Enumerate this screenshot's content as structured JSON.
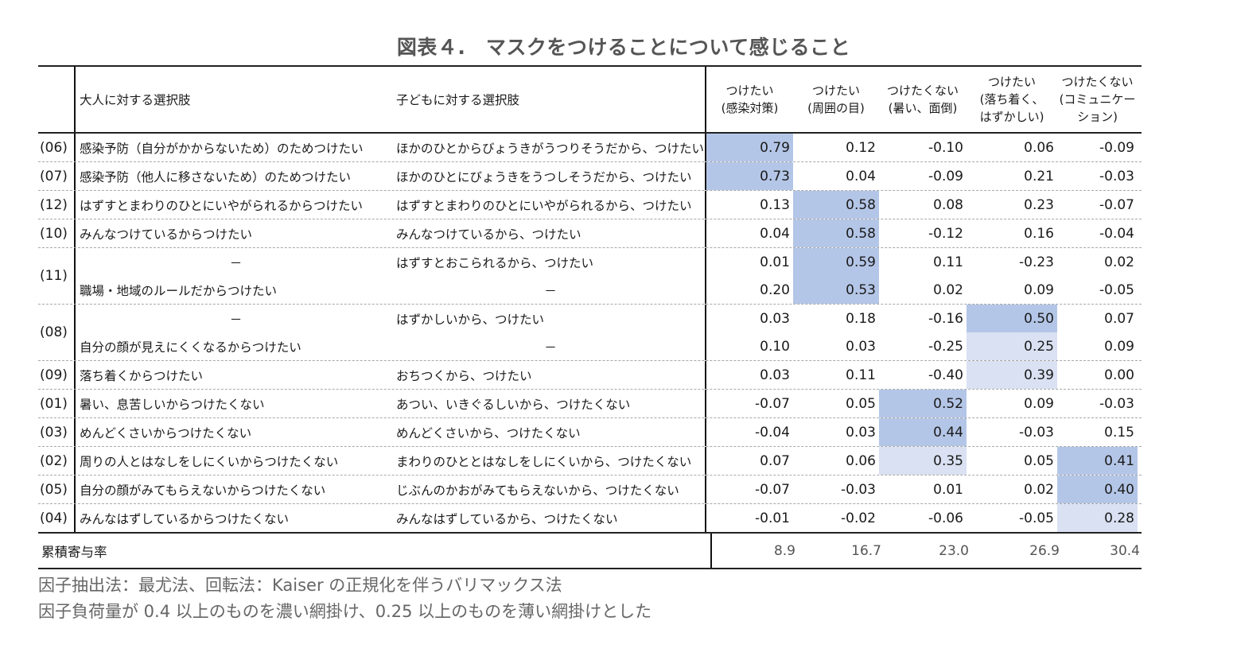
{
  "title": "図表４.　マスクをつけることについて感じること",
  "header": {
    "adult": "大人に対する選択肢",
    "child": "子どもに対する選択肢",
    "factors": [
      {
        "line1": "つけたい",
        "line2": "(感染対策)",
        "line3": ""
      },
      {
        "line1": "つけたい",
        "line2": "(周囲の目)",
        "line3": ""
      },
      {
        "line1": "つけたくない",
        "line2": "(暑い、面倒)",
        "line3": ""
      },
      {
        "line1": "つけたい",
        "line2": "(落ち着く、",
        "line3": "はずかしい)"
      },
      {
        "line1": "つけたくない",
        "line2": "(コミュニケー",
        "line3": "ション)"
      }
    ]
  },
  "rows": [
    {
      "code": "(06)",
      "adult": "感染予防（自分がかからないため）のためつけたい",
      "child": "ほかのひとからびょうきがうつりそうだから、つけたい",
      "values": [
        "0.79",
        "0.12",
        "-0.10",
        "0.06",
        "-0.09"
      ],
      "shade": [
        "dark",
        "",
        "",
        "",
        ""
      ]
    },
    {
      "code": "(07)",
      "adult": "感染予防（他人に移さないため）のためつけたい",
      "child": "ほかのひとにびょうきをうつしそうだから、つけたい",
      "values": [
        "0.73",
        "0.04",
        "-0.09",
        "0.21",
        "-0.03"
      ],
      "shade": [
        "dark",
        "",
        "",
        "",
        ""
      ]
    },
    {
      "code": "(12)",
      "adult": "はずすとまわりのひとにいやがられるからつけたい",
      "child": "はずすとまわりのひとにいやがられるから、つけたい",
      "values": [
        "0.13",
        "0.58",
        "0.08",
        "0.23",
        "-0.07"
      ],
      "shade": [
        "",
        "dark",
        "",
        "",
        ""
      ]
    },
    {
      "code": "(10)",
      "adult": "みんなつけているからつけたい",
      "child": "みんなつけているから、つけたい",
      "values": [
        "0.04",
        "0.58",
        "-0.12",
        "0.16",
        "-0.04"
      ],
      "shade": [
        "",
        "dark",
        "",
        "",
        ""
      ]
    },
    {
      "code": "(11)",
      "sub": [
        {
          "adult": "－",
          "child": "はずすとおこられるから、つけたい",
          "values": [
            "0.01",
            "0.59",
            "0.11",
            "-0.23",
            "0.02"
          ],
          "shade": [
            "",
            "dark",
            "",
            "",
            ""
          ]
        },
        {
          "adult": "職場・地域のルールだからつけたい",
          "child": "－",
          "values": [
            "0.20",
            "0.53",
            "0.02",
            "0.09",
            "-0.05"
          ],
          "shade": [
            "",
            "dark",
            "",
            "",
            ""
          ]
        }
      ]
    },
    {
      "code": "(08)",
      "sub": [
        {
          "adult": "－",
          "child": "はずかしいから、つけたい",
          "values": [
            "0.03",
            "0.18",
            "-0.16",
            "0.50",
            "0.07"
          ],
          "shade": [
            "",
            "",
            "",
            "dark",
            ""
          ]
        },
        {
          "adult": "自分の顔が見えにくくなるからつけたい",
          "child": "－",
          "values": [
            "0.10",
            "0.03",
            "-0.25",
            "0.25",
            "0.09"
          ],
          "shade": [
            "",
            "",
            "",
            "light",
            ""
          ]
        }
      ]
    },
    {
      "code": "(09)",
      "adult": "落ち着くからつけたい",
      "child": "おちつくから、つけたい",
      "values": [
        "0.03",
        "0.11",
        "-0.40",
        "0.39",
        "0.00"
      ],
      "shade": [
        "",
        "",
        "",
        "light",
        ""
      ]
    },
    {
      "code": "(01)",
      "adult": "暑い、息苦しいからつけたくない",
      "child": "あつい、いきぐるしいから、つけたくない",
      "values": [
        "-0.07",
        "0.05",
        "0.52",
        "0.09",
        "-0.03"
      ],
      "shade": [
        "",
        "",
        "dark",
        "",
        ""
      ]
    },
    {
      "code": "(03)",
      "adult": "めんどくさいからつけたくない",
      "child": "めんどくさいから、つけたくない",
      "values": [
        "-0.04",
        "0.03",
        "0.44",
        "-0.03",
        "0.15"
      ],
      "shade": [
        "",
        "",
        "dark",
        "",
        ""
      ]
    },
    {
      "code": "(02)",
      "adult": "周りの人とはなしをしにくいからつけたくない",
      "child": "まわりのひととはなしをしにくいから、つけたくない",
      "values": [
        "0.07",
        "0.06",
        "0.35",
        "0.05",
        "0.41"
      ],
      "shade": [
        "",
        "",
        "light",
        "",
        "dark"
      ]
    },
    {
      "code": "(05)",
      "adult": "自分の顔がみてもらえないからつけたくない",
      "child": "じぶんのかおがみてもらえないから、つけたくない",
      "values": [
        "-0.07",
        "-0.03",
        "0.01",
        "0.02",
        "0.40"
      ],
      "shade": [
        "",
        "",
        "",
        "",
        "dark"
      ]
    },
    {
      "code": "(04)",
      "adult": "みんなはずしているからつけたくない",
      "child": "みんなはずしているから、つけたくない",
      "values": [
        "-0.01",
        "-0.02",
        "-0.06",
        "-0.05",
        "0.28"
      ],
      "shade": [
        "",
        "",
        "",
        "",
        "light"
      ]
    }
  ],
  "footer": {
    "label": "累積寄与率",
    "values": [
      "8.9",
      "16.7",
      "23.0",
      "26.9",
      "30.4"
    ]
  },
  "notes": [
    "因子抽出法：最尤法、回転法：Kaiser の正規化を伴うバリマックス法",
    "因子負荷量が 0.4 以上のものを濃い網掛け、0.25 以上のものを薄い網掛けとした"
  ],
  "colors": {
    "dark_shade": "#b4c6e7",
    "light_shade": "#d9e1f2",
    "title": "#555555"
  }
}
